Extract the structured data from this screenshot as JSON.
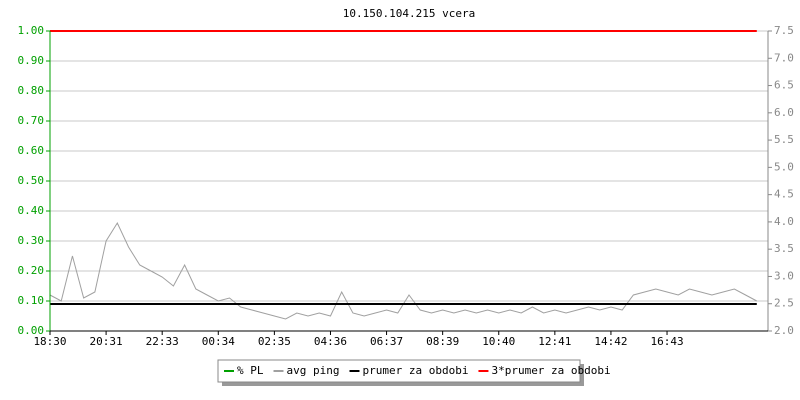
{
  "chart_data": {
    "type": "line",
    "title": "10.150.104.215 vcera",
    "categories": [
      "18:30",
      null,
      null,
      null,
      null,
      "20:31",
      null,
      null,
      null,
      null,
      "22:33",
      null,
      null,
      null,
      null,
      "00:34",
      null,
      null,
      null,
      null,
      "02:35",
      null,
      null,
      null,
      null,
      "04:36",
      null,
      null,
      null,
      null,
      "06:37",
      null,
      null,
      null,
      null,
      "08:39",
      null,
      null,
      null,
      null,
      "10:40",
      null,
      null,
      null,
      null,
      "12:41",
      null,
      null,
      null,
      null,
      "14:42",
      null,
      null,
      null,
      null,
      "16:43",
      null,
      null,
      null,
      null,
      null,
      null,
      null,
      null
    ],
    "ylim": [
      0,
      1
    ],
    "yticks": [
      {
        "value": 0,
        "label": "0.00"
      },
      {
        "value": 0.1,
        "label": "0.10"
      },
      {
        "value": 0.2,
        "label": "0.20"
      },
      {
        "value": 0.3,
        "label": "0.30"
      },
      {
        "value": 0.4,
        "label": "0.40"
      },
      {
        "value": 0.5,
        "label": "0.50"
      },
      {
        "value": 0.6,
        "label": "0.60"
      },
      {
        "value": 0.7,
        "label": "0.70"
      },
      {
        "value": 0.8,
        "label": "0.80"
      },
      {
        "value": 0.9,
        "label": "0.90"
      },
      {
        "value": 1,
        "label": "1.00"
      }
    ],
    "y2lim": [
      2,
      7.5
    ],
    "y2ticks": [
      {
        "value": 2,
        "label": "2.0"
      },
      2.5,
      {
        "value": 3,
        "label": "3.0"
      },
      3.5,
      {
        "value": 4,
        "label": "4.0"
      },
      4.5,
      {
        "value": 5,
        "label": "5.0"
      },
      5.5,
      {
        "value": 6,
        "label": "6.0"
      },
      6.5,
      {
        "value": 7,
        "label": "7.0"
      },
      7.5
    ],
    "grid": true,
    "series": [
      {
        "name": "% PL",
        "color": "#00a000",
        "values": [
          0,
          0,
          0,
          0,
          0,
          0,
          0,
          0,
          0,
          0,
          0,
          0,
          0,
          0,
          0,
          0,
          0,
          0,
          0,
          0,
          0,
          0,
          0,
          0,
          0,
          0,
          0,
          0,
          0,
          0,
          0,
          0,
          0,
          0,
          0,
          0,
          0,
          0,
          0,
          0,
          0,
          0,
          0,
          0,
          0,
          0,
          0,
          0,
          0,
          0,
          0,
          0,
          0,
          0,
          0,
          0,
          0,
          0,
          0,
          0,
          0,
          0,
          0,
          0
        ]
      },
      {
        "name": "avg ping",
        "color": "#a0a0a0",
        "values": [
          0.12,
          0.1,
          0.25,
          0.11,
          0.13,
          0.3,
          0.36,
          0.28,
          0.22,
          0.2,
          0.18,
          0.15,
          0.22,
          0.14,
          0.12,
          0.1,
          0.11,
          0.08,
          0.07,
          0.06,
          0.05,
          0.04,
          0.06,
          0.05,
          0.06,
          0.05,
          0.13,
          0.06,
          0.05,
          0.06,
          0.07,
          0.06,
          0.12,
          0.07,
          0.06,
          0.07,
          0.06,
          0.07,
          0.06,
          0.07,
          0.06,
          0.07,
          0.06,
          0.08,
          0.06,
          0.07,
          0.06,
          0.07,
          0.08,
          0.07,
          0.08,
          0.07,
          0.12,
          0.13,
          0.14,
          0.13,
          0.12,
          0.14,
          0.13,
          0.12,
          0.13,
          0.14,
          0.12,
          0.1
        ]
      },
      {
        "name": "prumer za obdobi",
        "color": "#000000",
        "values": [
          0.09,
          0.09,
          0.09,
          0.09,
          0.09,
          0.09,
          0.09,
          0.09,
          0.09,
          0.09,
          0.09,
          0.09,
          0.09,
          0.09,
          0.09,
          0.09,
          0.09,
          0.09,
          0.09,
          0.09,
          0.09,
          0.09,
          0.09,
          0.09,
          0.09,
          0.09,
          0.09,
          0.09,
          0.09,
          0.09,
          0.09,
          0.09,
          0.09,
          0.09,
          0.09,
          0.09,
          0.09,
          0.09,
          0.09,
          0.09,
          0.09,
          0.09,
          0.09,
          0.09,
          0.09,
          0.09,
          0.09,
          0.09,
          0.09,
          0.09,
          0.09,
          0.09,
          0.09,
          0.09,
          0.09,
          0.09,
          0.09,
          0.09,
          0.09,
          0.09,
          0.09,
          0.09,
          0.09,
          0.09
        ]
      },
      {
        "name": "3*prumer za obdobi",
        "color": "#ff0000",
        "values": [
          1,
          1,
          1,
          1,
          1,
          1,
          1,
          1,
          1,
          1,
          1,
          1,
          1,
          1,
          1,
          1,
          1,
          1,
          1,
          1,
          1,
          1,
          1,
          1,
          1,
          1,
          1,
          1,
          1,
          1,
          1,
          1,
          1,
          1,
          1,
          1,
          1,
          1,
          1,
          1,
          1,
          1,
          1,
          1,
          1,
          1,
          1,
          1,
          1,
          1,
          1,
          1,
          1,
          1,
          1,
          1,
          1,
          1,
          1,
          1,
          1,
          1,
          1,
          1
        ]
      }
    ]
  }
}
